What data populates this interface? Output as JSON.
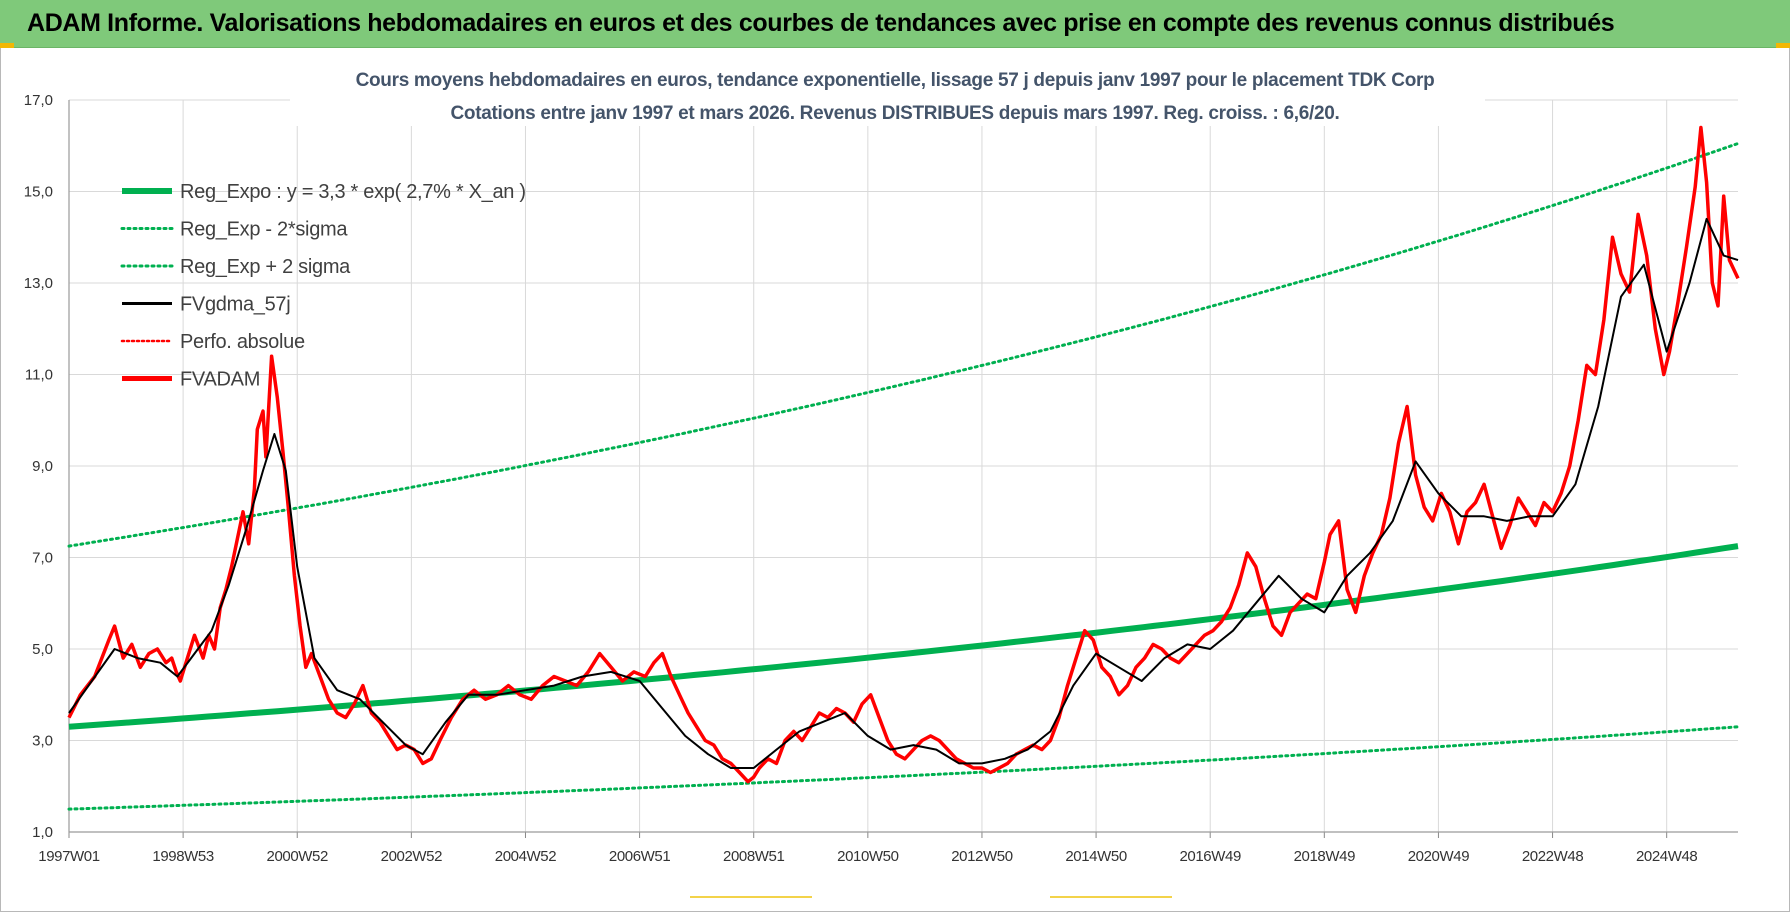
{
  "banner": {
    "title": "ADAM Informe. Valorisations hebdomadaires en euros et des courbes de tendances avec prise en compte des revenus connus distribués"
  },
  "colors": {
    "banner_bg": "#7fc97a",
    "reg_expo": "#00b050",
    "fvgdma": "#000000",
    "fvadam": "#ff0000",
    "grid": "#d9d9d9"
  },
  "chart_data": {
    "type": "line",
    "title": "Cours moyens hebdomadaires en euros, tendance exponentielle, lissage 57 j depuis janv 1997  pour le placement TDK Corp",
    "subtitle": "Cotations entre janv 1997 et mars 2026. Revenus DISTRIBUES depuis mars 1997.  Reg. croiss. : 6,6/20.",
    "xlabel": "",
    "ylabel": "",
    "ylim": [
      1.0,
      17.0
    ],
    "yticks": [
      "1,0",
      "3,0",
      "5,0",
      "7,0",
      "9,0",
      "11,0",
      "13,0",
      "15,0",
      "17,0"
    ],
    "xlim": [
      1997.0,
      2026.25
    ],
    "xticks": [
      {
        "x": 1997.0,
        "label": "1997W01"
      },
      {
        "x": 1999.0,
        "label": "1998W53"
      },
      {
        "x": 2001.0,
        "label": "2000W52"
      },
      {
        "x": 2003.0,
        "label": "2002W52"
      },
      {
        "x": 2005.0,
        "label": "2004W52"
      },
      {
        "x": 2007.0,
        "label": "2006W51"
      },
      {
        "x": 2009.0,
        "label": "2008W51"
      },
      {
        "x": 2011.0,
        "label": "2010W50"
      },
      {
        "x": 2013.0,
        "label": "2012W50"
      },
      {
        "x": 2015.0,
        "label": "2014W50"
      },
      {
        "x": 2017.0,
        "label": "2016W49"
      },
      {
        "x": 2019.0,
        "label": "2018W49"
      },
      {
        "x": 2021.0,
        "label": "2020W49"
      },
      {
        "x": 2023.0,
        "label": "2022W48"
      },
      {
        "x": 2025.0,
        "label": "2024W48"
      }
    ],
    "grid": true,
    "legend_position": "top-left",
    "legend": [
      {
        "key": "reg",
        "label": "Reg_Expo : y = 3,3 * exp( 2,7% *  X_an )",
        "style": "thick-green"
      },
      {
        "key": "lo",
        "label": "Reg_Exp - 2*sigma",
        "style": "dotted-green"
      },
      {
        "key": "hi",
        "label": "Reg_Exp + 2 sigma",
        "style": "dotted-green"
      },
      {
        "key": "fvg",
        "label": "FVgdma_57j",
        "style": "black"
      },
      {
        "key": "perf",
        "label": "Perfo. absolue",
        "style": "dotted-red"
      },
      {
        "key": "fva",
        "label": "FVADAM",
        "style": "thick-red"
      }
    ],
    "series": [
      {
        "key": "reg",
        "x": [
          1997.0,
          2026.25
        ],
        "y_base": 3.3,
        "y_end": 7.25,
        "model": "exponential"
      },
      {
        "key": "lo",
        "x": [
          1997.0,
          2026.25
        ],
        "y_base": 1.5,
        "y_end": 3.3,
        "model": "exponential"
      },
      {
        "key": "hi",
        "x": [
          1997.0,
          2026.25
        ],
        "y_base": 7.25,
        "y_end": 16.05,
        "model": "exponential"
      },
      {
        "key": "fva",
        "x": [
          1997.0,
          1997.2,
          1997.45,
          1997.7,
          1997.8,
          1997.95,
          1998.1,
          1998.25,
          1998.4,
          1998.55,
          1998.7,
          1998.8,
          1998.88,
          1998.95,
          1999.1,
          1999.2,
          1999.35,
          1999.45,
          1999.55,
          1999.65,
          1999.75,
          1999.85,
          1999.95,
          2000.05,
          2000.15,
          2000.25,
          2000.3,
          2000.4,
          2000.45,
          2000.55,
          2000.65,
          2000.75,
          2000.85,
          2000.95,
          2001.05,
          2001.15,
          2001.25,
          2001.4,
          2001.55,
          2001.7,
          2001.85,
          2002.0,
          2002.15,
          2002.3,
          2002.45,
          2002.6,
          2002.75,
          2002.9,
          2003.05,
          2003.2,
          2003.35,
          2003.5,
          2003.7,
          2003.9,
          2004.1,
          2004.3,
          2004.5,
          2004.7,
          2004.9,
          2005.1,
          2005.3,
          2005.5,
          2005.7,
          2005.9,
          2006.1,
          2006.3,
          2006.5,
          2006.7,
          2006.9,
          2007.1,
          2007.25,
          2007.4,
          2007.55,
          2007.7,
          2007.85,
          2008.0,
          2008.15,
          2008.3,
          2008.45,
          2008.6,
          2008.75,
          2008.9,
          2009.0,
          2009.1,
          2009.25,
          2009.4,
          2009.55,
          2009.7,
          2009.85,
          2010.0,
          2010.15,
          2010.3,
          2010.45,
          2010.6,
          2010.75,
          2010.9,
          2011.05,
          2011.2,
          2011.35,
          2011.5,
          2011.65,
          2011.8,
          2011.95,
          2012.1,
          2012.25,
          2012.4,
          2012.55,
          2012.7,
          2012.85,
          2013.0,
          2013.15,
          2013.3,
          2013.45,
          2013.6,
          2013.75,
          2013.9,
          2014.05,
          2014.2,
          2014.35,
          2014.5,
          2014.65,
          2014.8,
          2014.95,
          2015.1,
          2015.25,
          2015.4,
          2015.55,
          2015.7,
          2015.85,
          2016.0,
          2016.15,
          2016.3,
          2016.45,
          2016.6,
          2016.75,
          2016.9,
          2017.05,
          2017.2,
          2017.35,
          2017.5,
          2017.65,
          2017.8,
          2017.95,
          2018.1,
          2018.25,
          2018.4,
          2018.55,
          2018.7,
          2018.85,
          2019.0,
          2019.1,
          2019.25,
          2019.4,
          2019.55,
          2019.7,
          2019.85,
          2020.0,
          2020.15,
          2020.3,
          2020.45,
          2020.6,
          2020.75,
          2020.9,
          2021.05,
          2021.2,
          2021.35,
          2021.5,
          2021.65,
          2021.8,
          2021.95,
          2022.1,
          2022.25,
          2022.4,
          2022.55,
          2022.7,
          2022.85,
          2023.0,
          2023.15,
          2023.3,
          2023.45,
          2023.6,
          2023.75,
          2023.9,
          2024.05,
          2024.2,
          2024.35,
          2024.5,
          2024.65,
          2024.8,
          2024.95,
          2025.05,
          2025.2,
          2025.35,
          2025.5,
          2025.6,
          2025.7,
          2025.8,
          2025.9,
          2026.0,
          2026.1,
          2026.25
        ],
        "y": [
          3.5,
          4.0,
          4.4,
          5.2,
          5.5,
          4.8,
          5.1,
          4.6,
          4.9,
          5.0,
          4.7,
          4.8,
          4.5,
          4.3,
          4.9,
          5.3,
          4.8,
          5.3,
          5.0,
          5.9,
          6.3,
          6.8,
          7.4,
          8.0,
          7.3,
          8.5,
          9.8,
          10.2,
          9.2,
          11.4,
          10.5,
          9.3,
          8.0,
          6.6,
          5.5,
          4.6,
          4.9,
          4.4,
          3.9,
          3.6,
          3.5,
          3.8,
          4.2,
          3.6,
          3.4,
          3.1,
          2.8,
          2.9,
          2.8,
          2.5,
          2.6,
          3.0,
          3.5,
          3.9,
          4.1,
          3.9,
          4.0,
          4.2,
          4.0,
          3.9,
          4.2,
          4.4,
          4.3,
          4.2,
          4.5,
          4.9,
          4.6,
          4.3,
          4.5,
          4.4,
          4.7,
          4.9,
          4.4,
          4.0,
          3.6,
          3.3,
          3.0,
          2.9,
          2.6,
          2.5,
          2.3,
          2.1,
          2.2,
          2.4,
          2.6,
          2.5,
          3.0,
          3.2,
          3.0,
          3.3,
          3.6,
          3.5,
          3.7,
          3.6,
          3.4,
          3.8,
          4.0,
          3.5,
          3.0,
          2.7,
          2.6,
          2.8,
          3.0,
          3.1,
          3.0,
          2.8,
          2.6,
          2.5,
          2.4,
          2.4,
          2.3,
          2.4,
          2.5,
          2.7,
          2.8,
          2.9,
          2.8,
          3.0,
          3.5,
          4.2,
          4.8,
          5.4,
          5.2,
          4.6,
          4.4,
          4.0,
          4.2,
          4.6,
          4.8,
          5.1,
          5.0,
          4.8,
          4.7,
          4.9,
          5.1,
          5.3,
          5.4,
          5.6,
          5.9,
          6.4,
          7.1,
          6.8,
          6.1,
          5.5,
          5.3,
          5.8,
          6.0,
          6.2,
          6.1,
          6.9,
          7.5,
          7.8,
          6.3,
          5.8,
          6.6,
          7.1,
          7.5,
          8.3,
          9.5,
          10.3,
          8.8,
          8.1,
          7.8,
          8.4,
          8.0,
          7.3,
          8.0,
          8.2,
          8.6,
          7.9,
          7.2,
          7.7,
          8.3,
          8.0,
          7.7,
          8.2,
          8.0,
          8.4,
          9.0,
          10.0,
          11.2,
          11.0,
          12.2,
          14.0,
          13.2,
          12.8,
          14.5,
          13.6,
          12.0,
          11.0,
          11.5,
          12.6,
          13.8,
          15.1,
          16.4,
          15.2,
          13.0,
          12.5,
          14.9,
          13.5,
          13.1
        ],
        "note": "approximate readings of the weekly curve"
      },
      {
        "key": "fvg",
        "x": [
          1997.0,
          1997.4,
          1997.8,
          1998.2,
          1998.6,
          1998.9,
          1999.2,
          1999.5,
          1999.8,
          2000.1,
          2000.4,
          2000.6,
          2000.8,
          2001.0,
          2001.3,
          2001.7,
          2002.1,
          2002.5,
          2002.9,
          2003.2,
          2003.6,
          2004.0,
          2004.5,
          2005.0,
          2005.5,
          2006.0,
          2006.5,
          2007.0,
          2007.4,
          2007.8,
          2008.2,
          2008.6,
          2009.0,
          2009.4,
          2009.8,
          2010.2,
          2010.6,
          2011.0,
          2011.4,
          2011.8,
          2012.2,
          2012.6,
          2013.0,
          2013.4,
          2013.8,
          2014.2,
          2014.6,
          2015.0,
          2015.4,
          2015.8,
          2016.2,
          2016.6,
          2017.0,
          2017.4,
          2017.8,
          2018.2,
          2018.6,
          2019.0,
          2019.4,
          2019.8,
          2020.2,
          2020.6,
          2021.0,
          2021.4,
          2021.8,
          2022.2,
          2022.6,
          2023.0,
          2023.4,
          2023.8,
          2024.2,
          2024.6,
          2025.0,
          2025.4,
          2025.7,
          2026.0,
          2026.25
        ],
        "y": [
          3.6,
          4.3,
          5.0,
          4.8,
          4.7,
          4.4,
          4.9,
          5.4,
          6.4,
          7.6,
          8.9,
          9.7,
          8.9,
          6.8,
          4.8,
          4.1,
          3.9,
          3.4,
          2.9,
          2.7,
          3.4,
          4.0,
          4.0,
          4.1,
          4.2,
          4.4,
          4.5,
          4.3,
          3.7,
          3.1,
          2.7,
          2.4,
          2.4,
          2.8,
          3.2,
          3.4,
          3.6,
          3.1,
          2.8,
          2.9,
          2.8,
          2.5,
          2.5,
          2.6,
          2.8,
          3.2,
          4.2,
          4.9,
          4.6,
          4.3,
          4.8,
          5.1,
          5.0,
          5.4,
          6.0,
          6.6,
          6.1,
          5.8,
          6.6,
          7.1,
          7.8,
          9.1,
          8.4,
          7.9,
          7.9,
          7.8,
          7.9,
          7.9,
          8.6,
          10.3,
          12.7,
          13.4,
          11.5,
          13.0,
          14.4,
          13.6,
          13.5
        ],
        "note": "approximate readings of the smoothed curve"
      }
    ]
  }
}
